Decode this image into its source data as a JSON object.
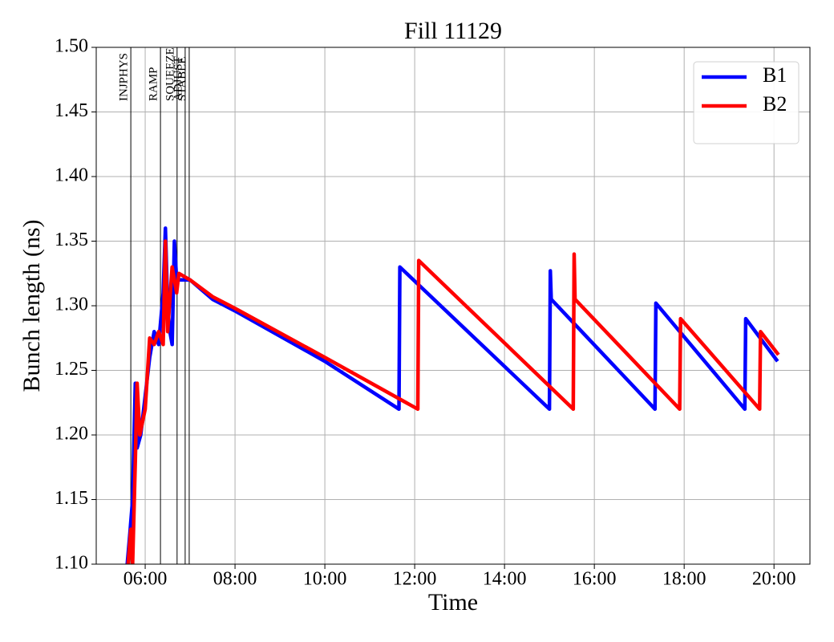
{
  "chart_data": {
    "type": "line",
    "title": "Fill 11129",
    "xlabel": "Time",
    "ylabel": "Bunch length (ns)",
    "xlim": [
      4.91,
      20.8
    ],
    "xticks": [
      {
        "value": 6,
        "label": "06:00"
      },
      {
        "value": 8,
        "label": "08:00"
      },
      {
        "value": 10,
        "label": "10:00"
      },
      {
        "value": 12,
        "label": "12:00"
      },
      {
        "value": 14,
        "label": "14:00"
      },
      {
        "value": 16,
        "label": "16:00"
      },
      {
        "value": 18,
        "label": "18:00"
      },
      {
        "value": 20,
        "label": "20:00"
      }
    ],
    "ylim": [
      1.1,
      1.5
    ],
    "yticks": [
      {
        "value": 1.1,
        "label": "1.10"
      },
      {
        "value": 1.15,
        "label": "1.15"
      },
      {
        "value": 1.2,
        "label": "1.20"
      },
      {
        "value": 1.25,
        "label": "1.25"
      },
      {
        "value": 1.3,
        "label": "1.30"
      },
      {
        "value": 1.35,
        "label": "1.35"
      },
      {
        "value": 1.4,
        "label": "1.40"
      },
      {
        "value": 1.45,
        "label": "1.45"
      },
      {
        "value": 1.5,
        "label": "1.50"
      }
    ],
    "grid": true,
    "legend": "upper right",
    "phases": [
      {
        "label": "INJPHYS",
        "x": 5.68
      },
      {
        "label": "RAMP",
        "x": 6.34
      },
      {
        "label": "SQUEEZE",
        "x": 6.71
      },
      {
        "label": "ADJUST",
        "x": 6.89
      },
      {
        "label": "STABLE",
        "x": 6.98
      }
    ],
    "series": [
      {
        "name": "B1",
        "color": "#0000ff",
        "x": [
          5.6,
          5.65,
          5.72,
          5.78,
          5.82,
          5.9,
          6.0,
          6.1,
          6.2,
          6.3,
          6.4,
          6.45,
          6.5,
          6.55,
          6.6,
          6.65,
          6.7,
          7.0,
          7.5,
          8.0,
          10.0,
          11.65,
          11.67,
          15.0,
          15.02,
          15.04,
          17.35,
          17.37,
          19.35,
          19.37,
          20.08
        ],
        "values": [
          1.1,
          1.12,
          1.15,
          1.24,
          1.19,
          1.2,
          1.23,
          1.26,
          1.28,
          1.27,
          1.31,
          1.36,
          1.3,
          1.28,
          1.27,
          1.35,
          1.32,
          1.32,
          1.305,
          1.296,
          1.257,
          1.22,
          1.33,
          1.22,
          1.327,
          1.305,
          1.22,
          1.302,
          1.22,
          1.29,
          1.257
        ]
      },
      {
        "name": "B2",
        "color": "#ff0000",
        "x": [
          5.62,
          5.68,
          5.72,
          5.78,
          5.82,
          5.88,
          6.0,
          6.1,
          6.2,
          6.3,
          6.4,
          6.45,
          6.5,
          6.6,
          6.7,
          6.75,
          7.0,
          7.5,
          8.0,
          10.0,
          12.07,
          12.09,
          15.53,
          15.55,
          15.57,
          17.9,
          17.92,
          19.68,
          19.7,
          20.1
        ],
        "values": [
          1.1,
          1.127,
          1.1,
          1.18,
          1.24,
          1.2,
          1.22,
          1.275,
          1.27,
          1.28,
          1.27,
          1.35,
          1.28,
          1.33,
          1.31,
          1.325,
          1.32,
          1.307,
          1.298,
          1.26,
          1.22,
          1.335,
          1.22,
          1.34,
          1.305,
          1.22,
          1.29,
          1.22,
          1.28,
          1.262
        ]
      }
    ]
  }
}
